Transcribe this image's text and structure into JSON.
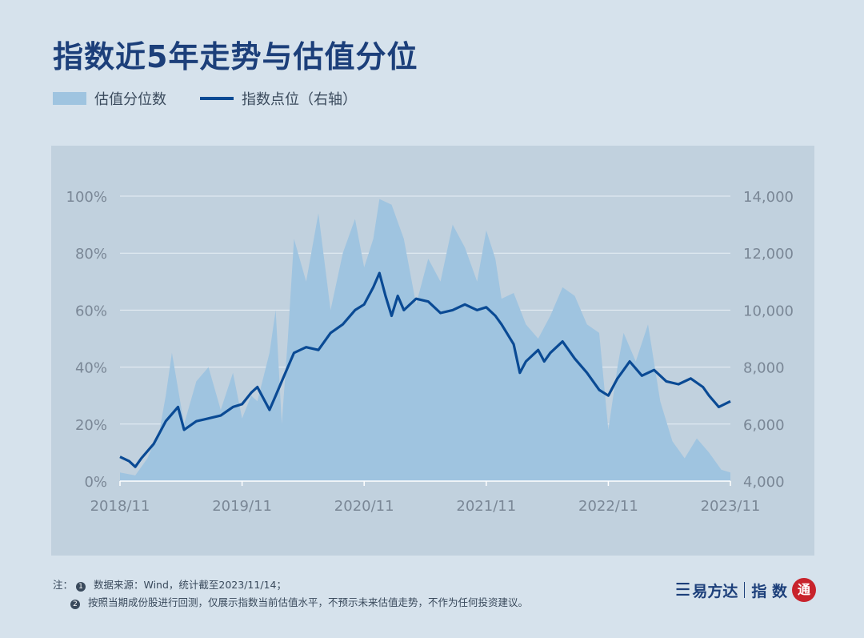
{
  "title": "指数近5年走势与估值分位",
  "legend": {
    "area_label": "估值分位数",
    "line_label": "指数点位（右轴）"
  },
  "footnote": {
    "prefix": "注：",
    "note1": "数据来源：Wind，统计截至2023/11/14；",
    "note2": "按照当期成份股进行回测，仅展示指数当前估值水平，不预示未来估值走势，不作为任何投资建议。"
  },
  "brand": {
    "name": "易方达",
    "section": "指 数",
    "seal": "通"
  },
  "colors": {
    "area": "#9fc4e0",
    "line": "#0a4a94",
    "background": "#d6e2ec",
    "plot_bg": "#c1d1de"
  },
  "chart_data": {
    "type": "area+line",
    "title": "指数近5年走势与估值分位",
    "x_ticks": [
      "2018/11",
      "2019/11",
      "2020/11",
      "2021/11",
      "2022/11",
      "2023/11"
    ],
    "x_range": [
      2018.875,
      2023.875
    ],
    "y_left": {
      "ticks": [
        "0%",
        "20%",
        "40%",
        "60%",
        "80%",
        "100%"
      ],
      "range": [
        0,
        100
      ]
    },
    "y_right": {
      "ticks": [
        "4,000",
        "6,000",
        "8,000",
        "10,000",
        "12,000",
        "14,000"
      ],
      "range": [
        4000,
        14000
      ]
    },
    "series": [
      {
        "name": "估值分位数",
        "type": "area",
        "axis": "left",
        "x": [
          2018.875,
          2019.0,
          2019.1,
          2019.2,
          2019.25,
          2019.3,
          2019.4,
          2019.5,
          2019.6,
          2019.7,
          2019.8,
          2019.875,
          2019.95,
          2020.0,
          2020.1,
          2020.15,
          2020.2,
          2020.25,
          2020.3,
          2020.4,
          2020.5,
          2020.6,
          2020.7,
          2020.8,
          2020.875,
          2020.95,
          2021.0,
          2021.1,
          2021.2,
          2021.3,
          2021.4,
          2021.5,
          2021.6,
          2021.7,
          2021.8,
          2021.875,
          2021.95,
          2022.0,
          2022.1,
          2022.2,
          2022.3,
          2022.4,
          2022.5,
          2022.6,
          2022.7,
          2022.8,
          2022.875,
          2022.95,
          2023.0,
          2023.1,
          2023.2,
          2023.3,
          2023.4,
          2023.5,
          2023.6,
          2023.7,
          2023.8,
          2023.875
        ],
        "values": [
          3,
          2,
          8,
          18,
          30,
          45,
          20,
          35,
          40,
          25,
          38,
          22,
          30,
          28,
          45,
          60,
          20,
          50,
          85,
          70,
          94,
          60,
          80,
          92,
          75,
          85,
          99,
          97,
          85,
          62,
          78,
          70,
          90,
          82,
          70,
          88,
          78,
          64,
          66,
          55,
          50,
          58,
          68,
          65,
          55,
          52,
          18,
          40,
          52,
          42,
          55,
          28,
          14,
          8,
          15,
          10,
          4,
          3
        ]
      },
      {
        "name": "指数点位（右轴）",
        "type": "line",
        "axis": "right",
        "x": [
          2018.875,
          2018.95,
          2019.0,
          2019.05,
          2019.15,
          2019.25,
          2019.35,
          2019.4,
          2019.5,
          2019.6,
          2019.7,
          2019.8,
          2019.875,
          2019.95,
          2020.0,
          2020.1,
          2020.15,
          2020.2,
          2020.3,
          2020.4,
          2020.5,
          2020.6,
          2020.7,
          2020.8,
          2020.875,
          2020.95,
          2021.0,
          2021.05,
          2021.1,
          2021.15,
          2021.2,
          2021.3,
          2021.4,
          2021.5,
          2021.6,
          2021.7,
          2021.8,
          2021.875,
          2021.95,
          2022.0,
          2022.1,
          2022.15,
          2022.2,
          2022.3,
          2022.35,
          2022.4,
          2022.5,
          2022.6,
          2022.7,
          2022.8,
          2022.875,
          2022.95,
          2023.0,
          2023.05,
          2023.15,
          2023.25,
          2023.35,
          2023.45,
          2023.55,
          2023.65,
          2023.7,
          2023.78,
          2023.875
        ],
        "values": [
          4850,
          4700,
          4500,
          4800,
          5300,
          6100,
          6600,
          5800,
          6100,
          6200,
          6300,
          6600,
          6700,
          7100,
          7300,
          6500,
          7000,
          7500,
          8500,
          8700,
          8600,
          9200,
          9500,
          10000,
          10200,
          10800,
          11300,
          10500,
          9800,
          10500,
          10000,
          10400,
          10300,
          9900,
          10000,
          10200,
          10000,
          10100,
          9800,
          9500,
          8800,
          7800,
          8200,
          8600,
          8200,
          8500,
          8900,
          8300,
          7800,
          7200,
          7000,
          7600,
          7900,
          8200,
          7700,
          7900,
          7500,
          7400,
          7600,
          7300,
          7000,
          6600,
          6800
        ]
      }
    ]
  }
}
